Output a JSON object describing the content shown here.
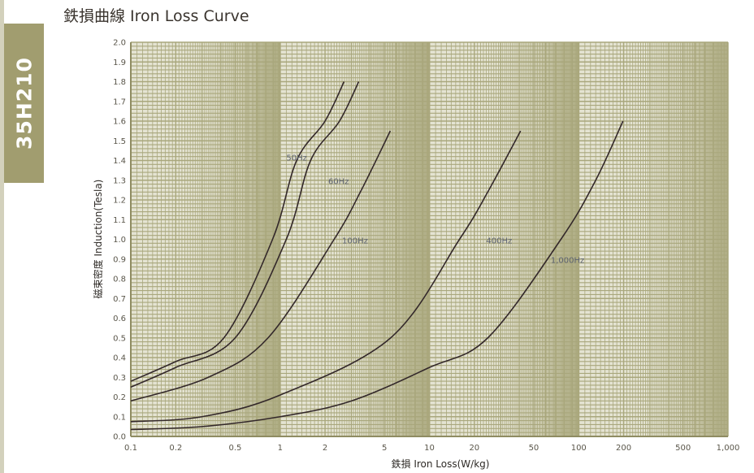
{
  "sidebar": {
    "grade": "35H210"
  },
  "chart_data": {
    "type": "line",
    "title": "鉄損曲線 Iron Loss Curve",
    "xlabel": "鉄損 Iron Loss(W/kg)",
    "ylabel": "磁束密度 Induction(Tesla)",
    "xscale": "log",
    "xlim": [
      0.1,
      1000
    ],
    "ylim": [
      0,
      2.0
    ],
    "grid": true,
    "xticks": [
      0.1,
      0.2,
      0.5,
      1,
      2,
      5,
      10,
      20,
      50,
      100,
      200,
      500,
      1000
    ],
    "xtick_labels": [
      "0.1",
      "0.2",
      "0.5",
      "1",
      "2",
      "5",
      "10",
      "20",
      "50",
      "100",
      "200",
      "500",
      "1,000"
    ],
    "yticks": [
      0.0,
      0.1,
      0.2,
      0.3,
      0.4,
      0.5,
      0.6,
      0.7,
      0.8,
      0.9,
      1.0,
      1.1,
      1.2,
      1.3,
      1.4,
      1.5,
      1.6,
      1.7,
      1.8,
      1.9,
      2.0
    ],
    "ytick_labels": [
      "0.0",
      "0.1",
      "0.2",
      "0.3",
      "0.4",
      "0.5",
      "0.6",
      "0.7",
      "0.8",
      "0.9",
      "1.0",
      "1.1",
      "1.2",
      "1.3",
      "1.4",
      "1.5",
      "1.6",
      "1.7",
      "1.8",
      "1.9",
      "2.0"
    ],
    "series": [
      {
        "name": "50Hz",
        "label_at": [
          1.1,
          1.4
        ],
        "x": [
          0.1,
          0.2,
          0.42,
          0.89,
          1.29,
          2.0,
          2.68
        ],
        "y": [
          0.28,
          0.38,
          0.5,
          1.0,
          1.4,
          1.6,
          1.8
        ]
      },
      {
        "name": "60Hz",
        "label_at": [
          2.1,
          1.28
        ],
        "x": [
          0.1,
          0.2,
          0.5,
          1.1,
          1.6,
          2.5,
          3.36
        ],
        "y": [
          0.25,
          0.35,
          0.5,
          1.0,
          1.4,
          1.6,
          1.8
        ]
      },
      {
        "name": "100Hz",
        "label_at": [
          2.6,
          0.98
        ],
        "x": [
          0.1,
          0.33,
          0.83,
          2.3,
          3.5,
          5.47
        ],
        "y": [
          0.18,
          0.3,
          0.5,
          1.0,
          1.25,
          1.55
        ]
      },
      {
        "name": "400Hz",
        "label_at": [
          24,
          0.98
        ],
        "x": [
          0.1,
          0.3,
          1.0,
          5.5,
          15.9,
          25,
          40.8
        ],
        "y": [
          0.075,
          0.1,
          0.21,
          0.5,
          1.0,
          1.25,
          1.55
        ]
      },
      {
        "name": "1,000Hz",
        "label_at": [
          65,
          0.88
        ],
        "x": [
          0.1,
          0.3,
          1.0,
          3.0,
          10,
          24.6,
          76,
          130,
          198
        ],
        "y": [
          0.035,
          0.05,
          0.1,
          0.18,
          0.35,
          0.5,
          1.0,
          1.3,
          1.6
        ]
      }
    ]
  }
}
